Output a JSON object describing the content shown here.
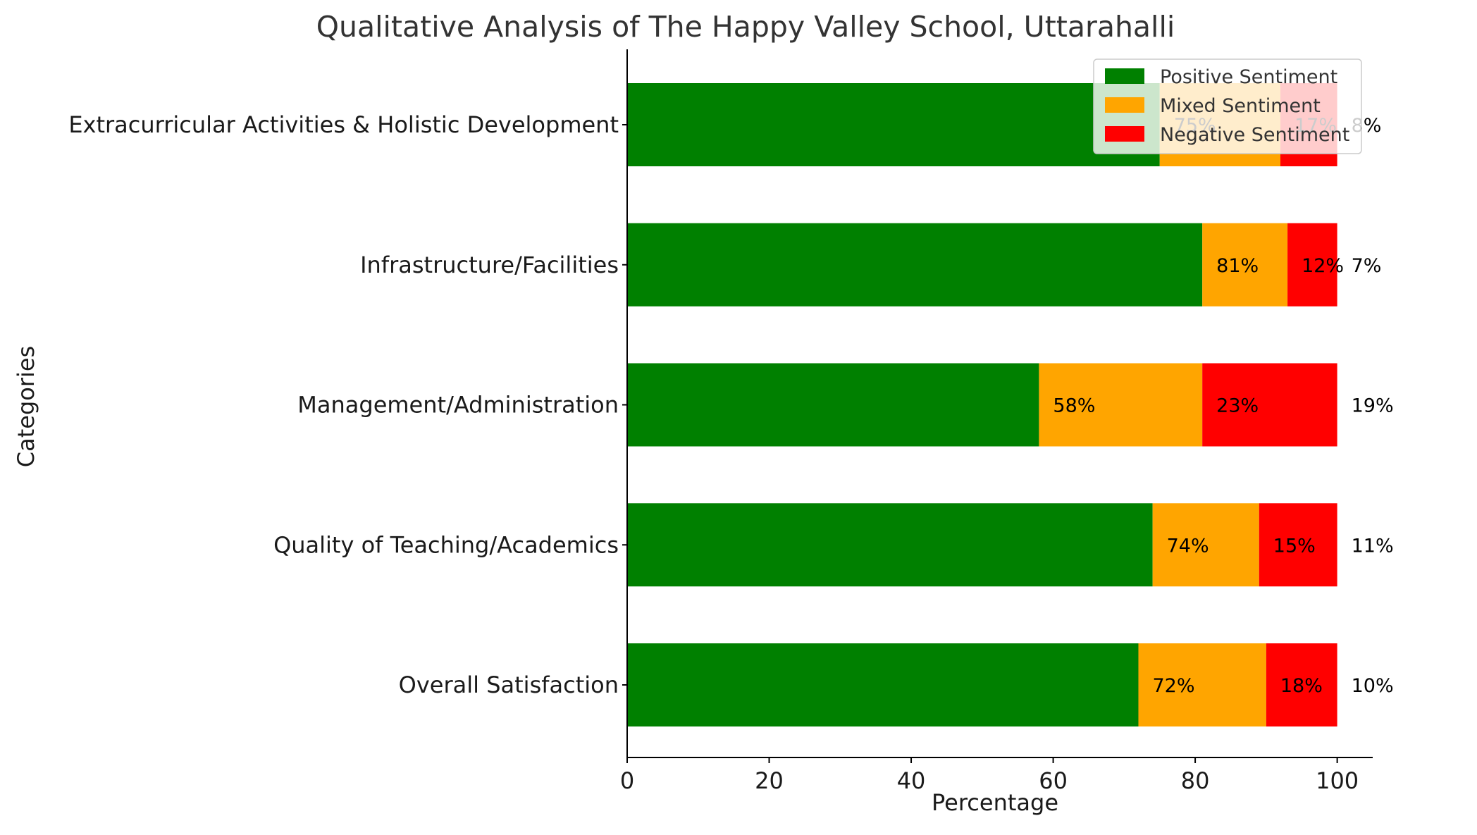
{
  "chart_data": {
    "type": "bar",
    "orientation": "horizontal",
    "stacked": true,
    "title": "Qualitative Analysis of The Happy Valley School, Uttarahalli",
    "xlabel": "Percentage",
    "ylabel": "Categories",
    "xlim": [
      0,
      105
    ],
    "xticks": [
      0,
      20,
      40,
      60,
      80,
      100
    ],
    "categories": [
      "Overall Satisfaction",
      "Quality of Teaching/Academics",
      "Management/Administration",
      "Infrastructure/Facilities",
      "Extracurricular Activities & Holistic Development"
    ],
    "series": [
      {
        "name": "Positive Sentiment",
        "color": "#008000",
        "values": [
          72,
          74,
          58,
          81,
          75
        ]
      },
      {
        "name": "Mixed Sentiment",
        "color": "#FFA500",
        "values": [
          18,
          15,
          23,
          12,
          17
        ]
      },
      {
        "name": "Negative Sentiment",
        "color": "#FF0000",
        "values": [
          10,
          11,
          19,
          7,
          8
        ]
      }
    ],
    "data_labels": {
      "positive": [
        "72%",
        "74%",
        "58%",
        "81%",
        "75%"
      ],
      "mixed": [
        "18%",
        "15%",
        "23%",
        "12%",
        "17%"
      ],
      "negative": [
        "10%",
        "11%",
        "19%",
        "7%",
        "8%"
      ]
    },
    "legend_position": "top-right",
    "grid": false
  }
}
